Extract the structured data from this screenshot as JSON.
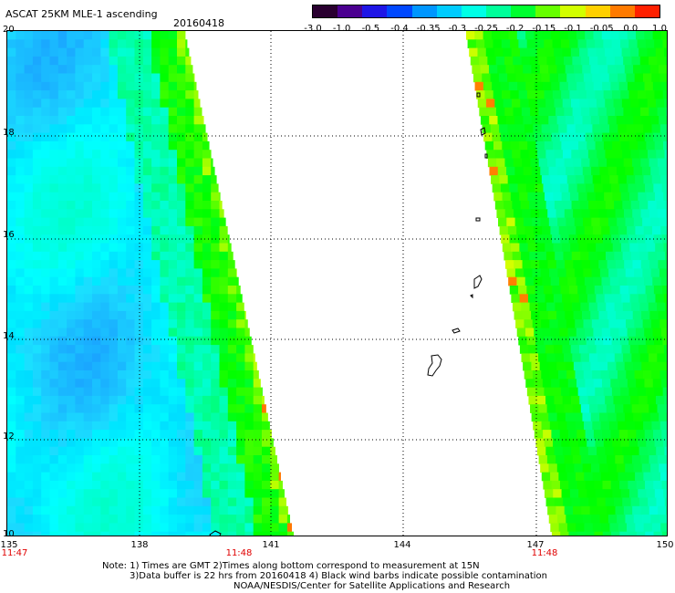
{
  "header": {
    "title": "ASCAT 25KM MLE-1 ascending",
    "date": "20160418"
  },
  "colorbar": {
    "labels": [
      "-3.0",
      "-1.0",
      "-0.5",
      "-0.4",
      "-0.35",
      "-0.3",
      "-0.25",
      "-0.2",
      "-0.15",
      "-0.1",
      "-0.05",
      "0.0",
      "1.0"
    ],
    "colors": [
      "#2a0030",
      "#4b0090",
      "#1f16e6",
      "#0048ff",
      "#0096ff",
      "#00ccff",
      "#00ffe6",
      "#00ff9a",
      "#00ff30",
      "#66ff00",
      "#d2ff00",
      "#ffd000",
      "#ff7a00",
      "#ff2000"
    ]
  },
  "map": {
    "lat_labels": [
      "20",
      "18",
      "16",
      "14",
      "12",
      "10"
    ],
    "lon_labels": [
      "135",
      "138",
      "141",
      "144",
      "147",
      "150"
    ],
    "swath_times": [
      "11:47",
      "11:48",
      "11:48"
    ]
  },
  "notes": {
    "line1": "Note: 1) Times are GMT 2)Times along bottom correspond to measurement at 15N",
    "line2": "3)Data buffer is 22 hrs from 20160418 4) Black wind barbs indicate possible contamination",
    "line3": "NOAA/NESDIS/Center for Satellite Applications and Research"
  }
}
